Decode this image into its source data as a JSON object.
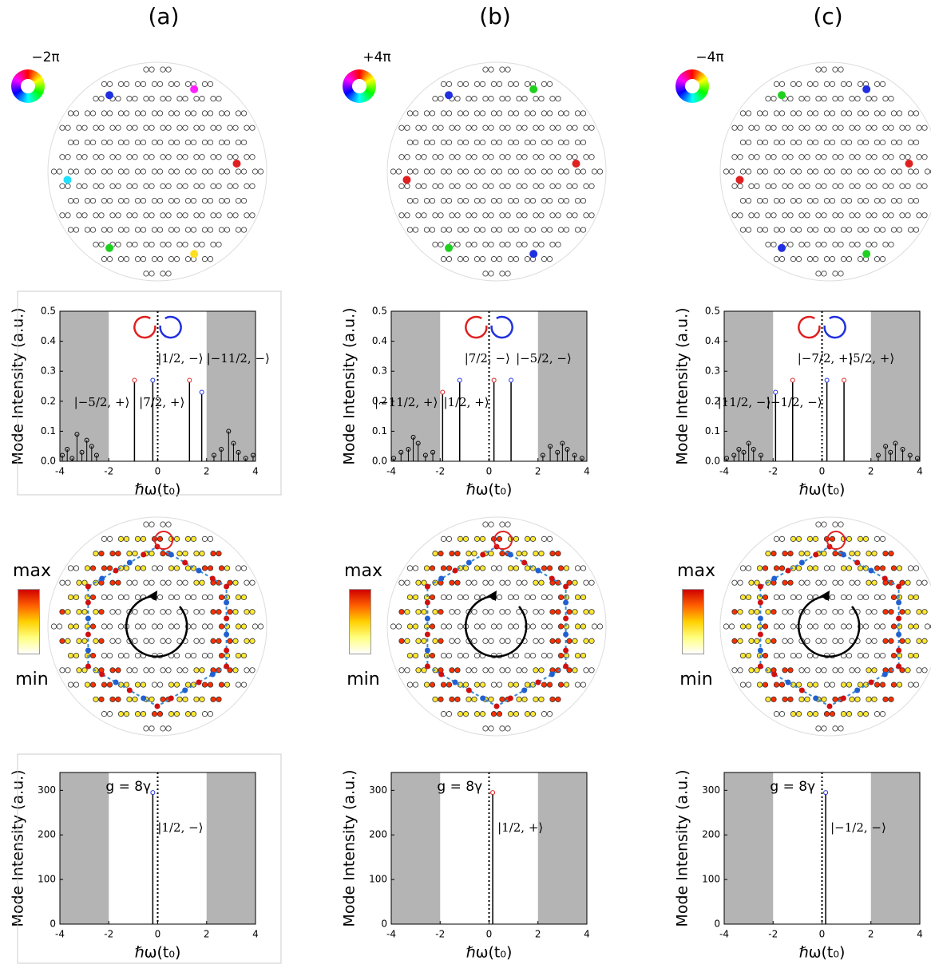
{
  "panels": [
    "(a)",
    "(b)",
    "(c)"
  ],
  "charges": [
    "−2π",
    "+4π",
    "−4π"
  ],
  "colorbar": {
    "max": "max",
    "min": "min"
  },
  "chart_data": [
    {
      "type": "stem",
      "xlabel": "ℏω(t₀)",
      "ylabel": "Mode Intensity (a.u.)",
      "xlim": [
        -4,
        4
      ],
      "xticks": [
        -4,
        -2,
        0,
        2,
        4
      ],
      "ylim": [
        0,
        0.5
      ],
      "yticks": [
        {
          "value": 0,
          "label": "0.0"
        },
        0.1,
        0.2,
        0.3,
        0.4,
        0.5
      ],
      "gap": [
        -2,
        2
      ],
      "vline": 0,
      "stems": [
        {
          "x": -0.95,
          "value": 0.27,
          "color": "#e02020",
          "label": "|−5/2, +⟩"
        },
        {
          "x": -0.2,
          "value": 0.27,
          "color": "#2030e0",
          "label": "|1/2, −⟩"
        },
        {
          "x": 1.3,
          "value": 0.27,
          "color": "#e02020",
          "label": "|7/2, +⟩"
        },
        {
          "x": 1.8,
          "value": 0.23,
          "color": "#2030e0",
          "label": "|−11/2, −⟩"
        }
      ],
      "background": {
        "x": [
          -3.9,
          -3.7,
          -3.5,
          -3.3,
          -3.1,
          -2.9,
          -2.7,
          -2.5,
          2.3,
          2.6,
          2.9,
          3.1,
          3.3,
          3.6,
          3.9
        ],
        "values": [
          0.02,
          0.04,
          0.01,
          0.09,
          0.03,
          0.07,
          0.05,
          0.02,
          0.02,
          0.04,
          0.1,
          0.06,
          0.03,
          0.01,
          0.02
        ]
      }
    },
    {
      "type": "stem",
      "xlabel": "ℏω(t₀)",
      "ylabel": "Mode Intensity (a.u.)",
      "xlim": [
        -4,
        4
      ],
      "xticks": [
        -4,
        -2,
        0,
        2,
        4
      ],
      "ylim": [
        0,
        0.5
      ],
      "yticks": [
        {
          "value": 0,
          "label": "0.0"
        },
        0.1,
        0.2,
        0.3,
        0.4,
        0.5
      ],
      "gap": [
        -2,
        2
      ],
      "vline": 0,
      "stems": [
        {
          "x": -1.9,
          "value": 0.23,
          "color": "#e02020",
          "label": "|−11/2, +⟩"
        },
        {
          "x": -1.2,
          "value": 0.27,
          "color": "#2030e0",
          "label": "|7/2, −⟩"
        },
        {
          "x": 0.2,
          "value": 0.27,
          "color": "#e02020",
          "label": "|1/2, +⟩"
        },
        {
          "x": 0.9,
          "value": 0.27,
          "color": "#2030e0",
          "label": "|−5/2, −⟩"
        }
      ],
      "background": {
        "x": [
          -3.9,
          -3.6,
          -3.3,
          -3.1,
          -2.9,
          -2.6,
          -2.3,
          2.2,
          2.5,
          2.8,
          3.0,
          3.2,
          3.5,
          3.8
        ],
        "values": [
          0.01,
          0.03,
          0.04,
          0.08,
          0.06,
          0.02,
          0.03,
          0.02,
          0.05,
          0.03,
          0.06,
          0.04,
          0.02,
          0.01
        ]
      }
    },
    {
      "type": "stem",
      "xlabel": "ℏω(t₀)",
      "ylabel": "Mode Intensity (a.u.)",
      "xlim": [
        -4,
        4
      ],
      "xticks": [
        -4,
        -2,
        0,
        2,
        4
      ],
      "ylim": [
        0,
        0.5
      ],
      "yticks": [
        {
          "value": 0,
          "label": "0.0"
        },
        0.1,
        0.2,
        0.3,
        0.4,
        0.5
      ],
      "gap": [
        -2,
        2
      ],
      "vline": 0,
      "stems": [
        {
          "x": -1.9,
          "value": 0.23,
          "color": "#2030e0",
          "label": "|11/2, −⟩"
        },
        {
          "x": -1.2,
          "value": 0.27,
          "color": "#e02020",
          "label": "|−7/2, +⟩"
        },
        {
          "x": 0.2,
          "value": 0.27,
          "color": "#2030e0",
          "label": "|−1/2, −⟩"
        },
        {
          "x": 0.9,
          "value": 0.27,
          "color": "#e02020",
          "label": "|5/2, +⟩"
        }
      ],
      "background": {
        "x": [
          -3.9,
          -3.6,
          -3.4,
          -3.2,
          -3.0,
          -2.8,
          -2.5,
          2.3,
          2.6,
          2.8,
          3.0,
          3.3,
          3.6,
          3.9
        ],
        "values": [
          0.01,
          0.02,
          0.04,
          0.03,
          0.06,
          0.04,
          0.02,
          0.02,
          0.05,
          0.03,
          0.06,
          0.04,
          0.02,
          0.01
        ]
      }
    },
    {
      "type": "stem",
      "xlabel": "ℏω(t₀)",
      "ylabel": "Mode Intensity (a.u.)",
      "annotation": "g =  8γ",
      "xlim": [
        -4,
        4
      ],
      "xticks": [
        -4,
        -2,
        0,
        2,
        4
      ],
      "ylim": [
        0,
        340
      ],
      "yticks": [
        0,
        100,
        200,
        300
      ],
      "gap": [
        -2,
        2
      ],
      "vline": 0,
      "stems": [
        {
          "x": -0.2,
          "value": 295,
          "color": "#2030e0",
          "label": "|1/2, −⟩"
        }
      ]
    },
    {
      "type": "stem",
      "xlabel": "ℏω(t₀)",
      "ylabel": "Mode Intensity (a.u.)",
      "annotation": "g =  8γ",
      "xlim": [
        -4,
        4
      ],
      "xticks": [
        -4,
        -2,
        0,
        2,
        4
      ],
      "ylim": [
        0,
        340
      ],
      "yticks": [
        0,
        100,
        200,
        300
      ],
      "gap": [
        -2,
        2
      ],
      "vline": 0,
      "stems": [
        {
          "x": 0.15,
          "value": 295,
          "color": "#e02020",
          "label": "|1/2, +⟩"
        }
      ]
    },
    {
      "type": "stem",
      "xlabel": "ℏω(t₀)",
      "ylabel": "Mode Intensity (a.u.)",
      "annotation": "g =  8γ",
      "xlim": [
        -4,
        4
      ],
      "xticks": [
        -4,
        -2,
        0,
        2,
        4
      ],
      "ylim": [
        0,
        340
      ],
      "yticks": [
        0,
        100,
        200,
        300
      ],
      "gap": [
        -2,
        2
      ],
      "vline": 0,
      "stems": [
        {
          "x": 0.15,
          "value": 295,
          "color": "#2030e0",
          "label": "|−1/2, −⟩"
        }
      ]
    }
  ]
}
